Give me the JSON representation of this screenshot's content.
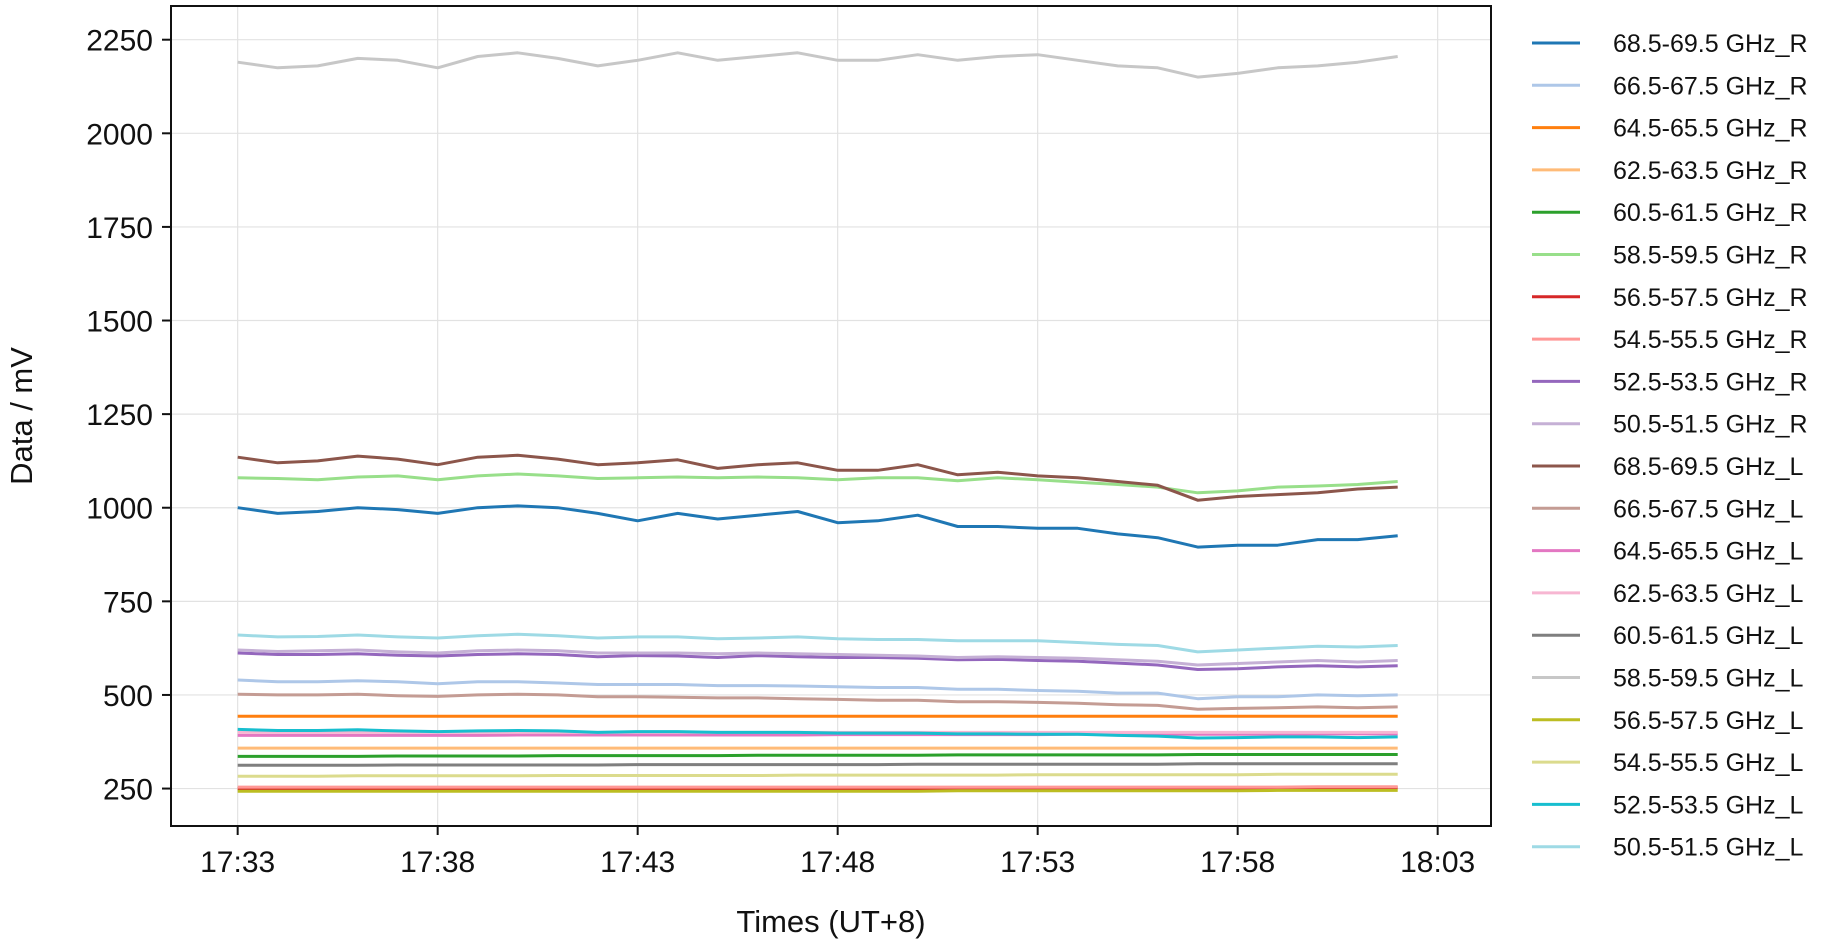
{
  "chart_data": {
    "type": "line",
    "title": "",
    "xlabel": "Times (UT+8)",
    "ylabel": "Data / mV",
    "x_ticks": [
      "17:33",
      "17:38",
      "17:43",
      "17:48",
      "17:53",
      "17:58",
      "18:03"
    ],
    "y_ticks": [
      "250",
      "500",
      "750",
      "1000",
      "1250",
      "1500",
      "1750",
      "2000",
      "2250"
    ],
    "xlim": [
      "17:31:20",
      "18:04:20"
    ],
    "ylim": [
      150,
      2340
    ],
    "grid": true,
    "legend_position": "outside-right",
    "x_times": [
      "17:33",
      "17:34",
      "17:35",
      "17:36",
      "17:37",
      "17:38",
      "17:39",
      "17:40",
      "17:41",
      "17:42",
      "17:43",
      "17:44",
      "17:45",
      "17:46",
      "17:47",
      "17:48",
      "17:49",
      "17:50",
      "17:51",
      "17:52",
      "17:53",
      "17:54",
      "17:55",
      "17:56",
      "17:57",
      "17:58",
      "17:59",
      "18:00",
      "18:01",
      "18:02"
    ],
    "series": [
      {
        "name": "68.5-69.5 GHz_R",
        "color": "#1f77b4",
        "values": [
          1000,
          985,
          990,
          1000,
          995,
          985,
          1000,
          1005,
          1000,
          985,
          965,
          985,
          970,
          980,
          990,
          960,
          965,
          980,
          950,
          950,
          945,
          945,
          930,
          920,
          895,
          900,
          900,
          915,
          915,
          925
        ]
      },
      {
        "name": "66.5-67.5 GHz_R",
        "color": "#aec7e8",
        "values": [
          540,
          535,
          535,
          538,
          535,
          530,
          535,
          535,
          532,
          528,
          528,
          528,
          525,
          525,
          524,
          522,
          520,
          520,
          515,
          515,
          512,
          510,
          505,
          505,
          490,
          495,
          495,
          500,
          498,
          500
        ]
      },
      {
        "name": "64.5-65.5 GHz_R",
        "color": "#ff7f0e",
        "values": [
          443,
          443,
          443,
          443,
          443,
          443,
          443,
          443,
          443,
          443,
          443,
          443,
          443,
          443,
          443,
          443,
          443,
          443,
          443,
          443,
          443,
          443,
          443,
          443,
          443,
          443,
          443,
          443,
          443,
          443
        ]
      },
      {
        "name": "62.5-63.5 GHz_R",
        "color": "#ffbb78",
        "values": [
          358,
          358,
          358,
          358,
          358,
          358,
          358,
          358,
          358,
          358,
          358,
          358,
          358,
          358,
          358,
          358,
          358,
          358,
          358,
          358,
          358,
          358,
          358,
          358,
          358,
          358,
          358,
          358,
          358,
          358
        ]
      },
      {
        "name": "60.5-61.5 GHz_R",
        "color": "#2ca02c",
        "values": [
          336,
          336,
          336,
          336,
          337,
          337,
          337,
          337,
          338,
          338,
          338,
          338,
          338,
          339,
          339,
          339,
          339,
          339,
          340,
          340,
          340,
          340,
          340,
          340,
          341,
          341,
          341,
          341,
          341,
          341
        ]
      },
      {
        "name": "58.5-59.5 GHz_R",
        "color": "#98df8a",
        "values": [
          1080,
          1078,
          1075,
          1082,
          1085,
          1075,
          1085,
          1090,
          1085,
          1078,
          1080,
          1082,
          1080,
          1082,
          1080,
          1075,
          1080,
          1080,
          1072,
          1080,
          1075,
          1068,
          1062,
          1055,
          1040,
          1045,
          1055,
          1058,
          1062,
          1070
        ]
      },
      {
        "name": "56.5-57.5 GHz_R",
        "color": "#d62728",
        "values": [
          250,
          250,
          250,
          250,
          250,
          250,
          250,
          250,
          250,
          250,
          250,
          250,
          250,
          250,
          250,
          250,
          250,
          250,
          250,
          250,
          250,
          250,
          250,
          250,
          250,
          250,
          250,
          252,
          252,
          252
        ]
      },
      {
        "name": "54.5-55.5 GHz_R",
        "color": "#ff9896",
        "values": [
          254,
          254,
          254,
          254,
          254,
          254,
          254,
          254,
          254,
          254,
          254,
          254,
          254,
          254,
          254,
          254,
          254,
          254,
          254,
          254,
          254,
          254,
          254,
          254,
          254,
          254,
          254,
          255,
          255,
          255
        ]
      },
      {
        "name": "52.5-53.5 GHz_R",
        "color": "#9467bd",
        "values": [
          612,
          608,
          608,
          610,
          606,
          604,
          608,
          610,
          608,
          602,
          605,
          604,
          600,
          605,
          602,
          600,
          600,
          598,
          594,
          595,
          592,
          590,
          585,
          580,
          568,
          570,
          575,
          578,
          575,
          578
        ]
      },
      {
        "name": "50.5-51.5 GHz_R",
        "color": "#c5b0d5",
        "values": [
          620,
          616,
          618,
          620,
          615,
          612,
          618,
          620,
          618,
          612,
          612,
          612,
          610,
          612,
          610,
          608,
          606,
          604,
          600,
          602,
          600,
          598,
          594,
          590,
          580,
          584,
          588,
          592,
          588,
          592
        ]
      },
      {
        "name": "68.5-69.5 GHz_L",
        "color": "#8c564b",
        "values": [
          1135,
          1120,
          1125,
          1138,
          1130,
          1115,
          1135,
          1140,
          1130,
          1115,
          1120,
          1128,
          1105,
          1115,
          1120,
          1100,
          1100,
          1115,
          1088,
          1095,
          1085,
          1080,
          1070,
          1060,
          1020,
          1030,
          1035,
          1040,
          1050,
          1055
        ]
      },
      {
        "name": "66.5-67.5 GHz_L",
        "color": "#c49c94",
        "values": [
          502,
          500,
          500,
          502,
          498,
          496,
          500,
          502,
          500,
          495,
          495,
          494,
          492,
          492,
          490,
          488,
          486,
          486,
          482,
          482,
          480,
          478,
          474,
          472,
          462,
          464,
          466,
          468,
          466,
          468
        ]
      },
      {
        "name": "64.5-65.5 GHz_L",
        "color": "#e377c2",
        "values": [
          392,
          392,
          392,
          392,
          392,
          392,
          392,
          393,
          393,
          393,
          393,
          393,
          393,
          393,
          393,
          394,
          394,
          394,
          394,
          394,
          394,
          395,
          395,
          395,
          395,
          395,
          395,
          396,
          396,
          396
        ]
      },
      {
        "name": "62.5-63.5 GHz_L",
        "color": "#f7b6d2",
        "values": [
          400,
          400,
          400,
          400,
          400,
          400,
          400,
          400,
          400,
          400,
          400,
          400,
          400,
          400,
          400,
          400,
          400,
          400,
          400,
          400,
          400,
          400,
          400,
          400,
          400,
          400,
          400,
          400,
          400,
          400
        ]
      },
      {
        "name": "60.5-61.5 GHz_L",
        "color": "#7f7f7f",
        "values": [
          312,
          312,
          312,
          312,
          313,
          313,
          313,
          313,
          313,
          313,
          314,
          314,
          314,
          314,
          314,
          314,
          314,
          315,
          315,
          315,
          315,
          315,
          315,
          315,
          316,
          316,
          316,
          316,
          316,
          316
        ]
      },
      {
        "name": "58.5-59.5 GHz_L",
        "color": "#c7c7c7",
        "values": [
          2190,
          2175,
          2180,
          2200,
          2195,
          2175,
          2205,
          2215,
          2200,
          2180,
          2195,
          2215,
          2195,
          2205,
          2215,
          2195,
          2195,
          2210,
          2195,
          2205,
          2210,
          2195,
          2180,
          2175,
          2150,
          2160,
          2175,
          2180,
          2190,
          2205
        ]
      },
      {
        "name": "56.5-57.5 GHz_L",
        "color": "#bcbd22",
        "values": [
          243,
          243,
          243,
          243,
          243,
          243,
          243,
          243,
          243,
          243,
          243,
          243,
          243,
          243,
          243,
          243,
          243,
          243,
          244,
          244,
          244,
          244,
          244,
          244,
          244,
          244,
          245,
          245,
          245,
          245
        ]
      },
      {
        "name": "54.5-55.5 GHz_L",
        "color": "#dbdb8d",
        "values": [
          283,
          283,
          283,
          284,
          284,
          284,
          284,
          284,
          285,
          285,
          285,
          285,
          285,
          285,
          286,
          286,
          286,
          286,
          286,
          286,
          287,
          287,
          287,
          287,
          287,
          287,
          288,
          288,
          288,
          288
        ]
      },
      {
        "name": "52.5-53.5 GHz_L",
        "color": "#17becf",
        "values": [
          408,
          405,
          405,
          407,
          404,
          402,
          404,
          405,
          404,
          400,
          402,
          402,
          400,
          400,
          400,
          398,
          398,
          398,
          396,
          396,
          395,
          395,
          392,
          390,
          385,
          386,
          388,
          388,
          386,
          388
        ]
      },
      {
        "name": "50.5-51.5 GHz_L",
        "color": "#9edae5",
        "values": [
          660,
          655,
          656,
          660,
          655,
          652,
          658,
          662,
          658,
          652,
          655,
          655,
          650,
          652,
          655,
          650,
          648,
          648,
          645,
          645,
          645,
          640,
          635,
          632,
          615,
          620,
          625,
          630,
          628,
          632
        ]
      }
    ]
  }
}
